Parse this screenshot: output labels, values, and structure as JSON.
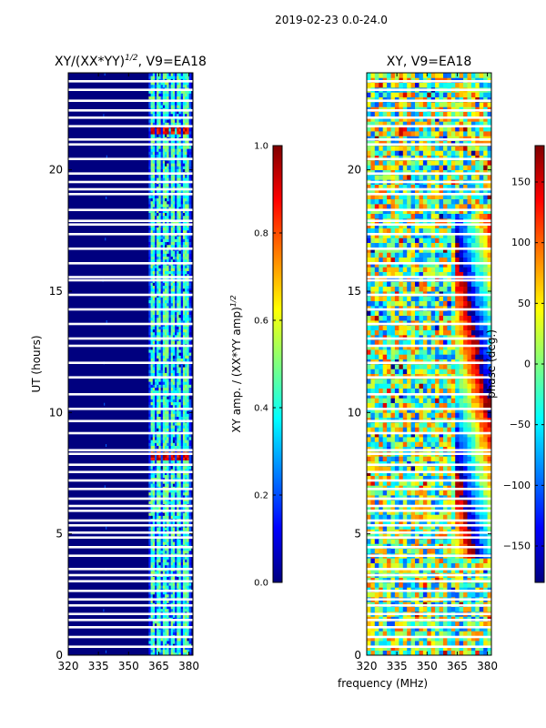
{
  "figure": {
    "suptitle": "2019-02-23 0.0-24.0",
    "xlabel": "frequency (MHz)",
    "colormap": [
      "#00007f",
      "#0000ff",
      "#007fff",
      "#00ffff",
      "#7fff7f",
      "#ffff00",
      "#ff7f00",
      "#ff0000",
      "#7f0000"
    ],
    "background_fill": "#00007f",
    "flag_color": "#ffffff"
  },
  "chart_data": [
    {
      "type": "heatmap",
      "title_main": "XY/(XX*YY)",
      "title_sup": "1/2",
      "title_suffix": ", V9=EA18",
      "xlabel": "",
      "ylabel": "UT (hours)",
      "xlim": [
        320,
        382
      ],
      "ylim": [
        0,
        24
      ],
      "xticks": [
        320,
        335,
        350,
        365,
        380
      ],
      "yticks": [
        0,
        5,
        10,
        15,
        20
      ],
      "active_band_mhz": [
        360,
        381
      ],
      "active_channels_mhz": [
        362,
        365,
        368.5,
        372,
        375,
        378.5
      ],
      "quiet_level": 0.0,
      "bright_rows_hours": [
        8.2,
        21.6
      ],
      "colorbar": {
        "label_main": "XY amp. / (XX*YY amp)",
        "label_sup": "1/2",
        "range": [
          0.0,
          1.0
        ],
        "ticks": [
          0.0,
          0.2,
          0.4,
          0.6,
          0.8,
          1.0
        ],
        "tick_labels": [
          "0.0",
          "0.2",
          "0.4",
          "0.6",
          "0.8",
          "1.0"
        ]
      }
    },
    {
      "type": "heatmap",
      "title": "XY, V9=EA18",
      "xlabel": "frequency (MHz)",
      "ylabel": "",
      "xlim": [
        320,
        382
      ],
      "ylim": [
        0,
        24
      ],
      "xticks": [
        320,
        335,
        350,
        365,
        380
      ],
      "yticks": [
        0,
        5,
        10,
        15,
        20
      ],
      "colorbar": {
        "label": "phase (deg.)",
        "range": [
          -180,
          180
        ],
        "ticks": [
          -150,
          -100,
          -50,
          0,
          50,
          100,
          150
        ],
        "tick_labels": [
          "−150",
          "−100",
          "−50",
          "0",
          "50",
          "100",
          "150"
        ]
      }
    }
  ],
  "flagged_hours": [
    0.35,
    0.75,
    1.15,
    1.45,
    1.7,
    2.05,
    2.3,
    2.65,
    3.05,
    3.3,
    3.55,
    4.1,
    4.45,
    4.85,
    5.05,
    5.35,
    5.55,
    5.95,
    6.15,
    6.45,
    6.85,
    7.2,
    7.55,
    7.85,
    8.3,
    8.45,
    9.15,
    9.65,
    10.15,
    10.75,
    11.45,
    12.05,
    12.75,
    13.05,
    13.65,
    14.25,
    14.85,
    15.45,
    15.58,
    16.15,
    16.75,
    17.35,
    17.75,
    17.9,
    18.35,
    19.0,
    19.2,
    19.5,
    19.85,
    20.45,
    21.05,
    21.25,
    21.8,
    22.15,
    22.45,
    22.85,
    23.3,
    23.65
  ]
}
